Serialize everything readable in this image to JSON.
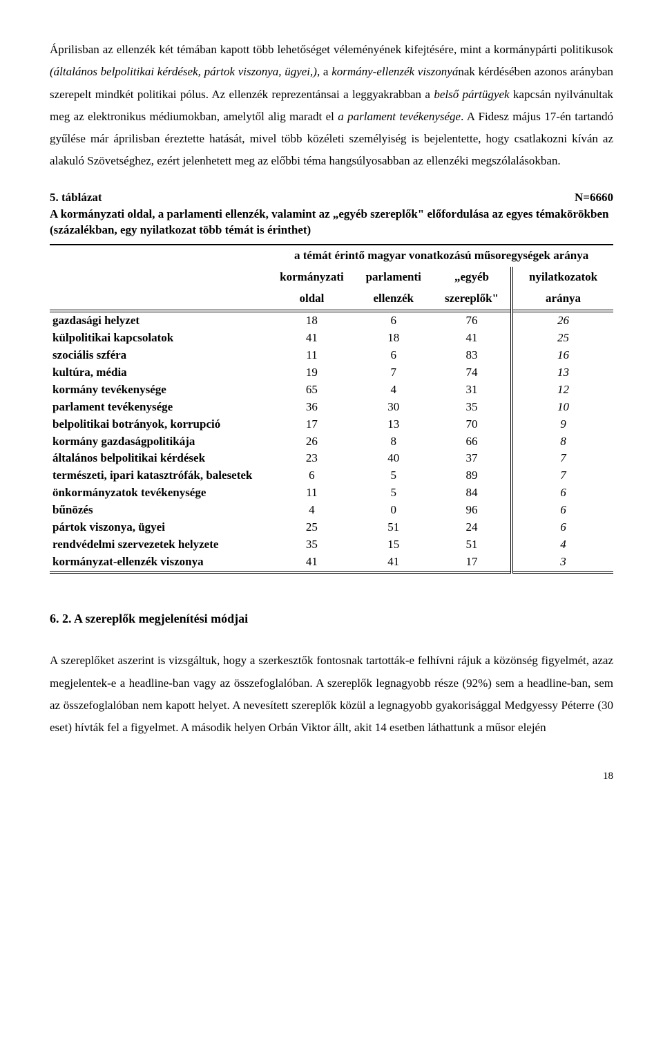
{
  "paragraph1": {
    "s1a": "Áprilisban az ellenzék két témában kapott több lehetőséget véleményének kifejtésére, mint a kormánypárti politikusok ",
    "s1b": "(általános belpolitikai kérdések, pártok viszonya, ügyei,)",
    "s1c": ", a ",
    "s1d": "kormány-ellenzék viszonyá",
    "s1e": "nak kérdésében azonos arányban szerepelt mindkét politikai pólus. Az ellenzék reprezentánsai a leggyakrabban a ",
    "s1f": "belső pártügyek",
    "s1g": " kapcsán nyilvánultak meg az elektronikus médiumokban, amelytől alig maradt el ",
    "s1h": "a parlament tevékenysége",
    "s1i": ". A Fidesz május 17-én tartandó gyűlése már áprilisban éreztette hatását, mivel több közéleti személyiség is bejelentette, hogy csatlakozni kíván az alakuló Szövetséghez, ezért jelenhetett meg az előbbi téma hangsúlyosabban az ellenzéki megszólalásokban."
  },
  "tabletitle": {
    "num": "5. táblázat",
    "n": "N=6660",
    "caption": "A kormányzati oldal, a parlamenti ellenzék, valamint az „egyéb szereplők\" előfordulása az egyes témakörökben (százalékban, egy nyilatkozat több témát is érinthet)"
  },
  "thead": {
    "spanner": "a témát érintő magyar vonatkozású műsoregységek aránya",
    "c1a": "kormányzati",
    "c1b": "oldal",
    "c2a": "parlamenti",
    "c2b": "ellenzék",
    "c3a": "„egyéb",
    "c3b": "szereplők\"",
    "c4a": "nyilatkozatok",
    "c4b": "aránya"
  },
  "rows": [
    {
      "label": "gazdasági helyzet",
      "v": [
        18,
        6,
        76,
        26
      ]
    },
    {
      "label": "külpolitikai kapcsolatok",
      "v": [
        41,
        18,
        41,
        25
      ]
    },
    {
      "label": "szociális szféra",
      "v": [
        11,
        6,
        83,
        16
      ]
    },
    {
      "label": "kultúra, média",
      "v": [
        19,
        7,
        74,
        13
      ]
    },
    {
      "label": "kormány tevékenysége",
      "v": [
        65,
        4,
        31,
        12
      ]
    },
    {
      "label": "parlament tevékenysége",
      "v": [
        36,
        30,
        35,
        10
      ]
    },
    {
      "label": "belpolitikai botrányok, korrupció",
      "v": [
        17,
        13,
        70,
        9
      ]
    },
    {
      "label": "kormány gazdaságpolitikája",
      "v": [
        26,
        8,
        66,
        8
      ]
    },
    {
      "label": "általános belpolitikai kérdések",
      "v": [
        23,
        40,
        37,
        7
      ]
    },
    {
      "label": "természeti, ipari katasztrófák, balesetek",
      "v": [
        6,
        5,
        89,
        7
      ]
    },
    {
      "label": "önkormányzatok tevékenysége",
      "v": [
        11,
        5,
        84,
        6
      ]
    },
    {
      "label": "bűnözés",
      "v": [
        4,
        0,
        96,
        6
      ]
    },
    {
      "label": "pártok viszonya, ügyei",
      "v": [
        25,
        51,
        24,
        6
      ]
    },
    {
      "label": "rendvédelmi szervezetek helyzete",
      "v": [
        35,
        15,
        51,
        4
      ]
    },
    {
      "label": "kormányzat-ellenzék viszonya",
      "v": [
        41,
        41,
        17,
        3
      ]
    }
  ],
  "section2": "6. 2. A szereplők megjelenítési módjai",
  "paragraph2": "A szereplőket aszerint is vizsgáltuk, hogy a szerkesztők fontosnak tartották-e felhívni rájuk a közönség figyelmét, azaz megjelentek-e a headline-ban vagy az összefoglalóban. A szereplők legnagyobb része (92%) sem a headline-ban, sem az összefoglalóban nem kapott helyet. A nevesített szereplők közül a legnagyobb gyakorisággal Medgyessy Péterre (30 eset) hívták fel a figyelmet. A második helyen Orbán Viktor állt, akit 14 esetben láthattunk a műsor elején",
  "pageno": "18"
}
